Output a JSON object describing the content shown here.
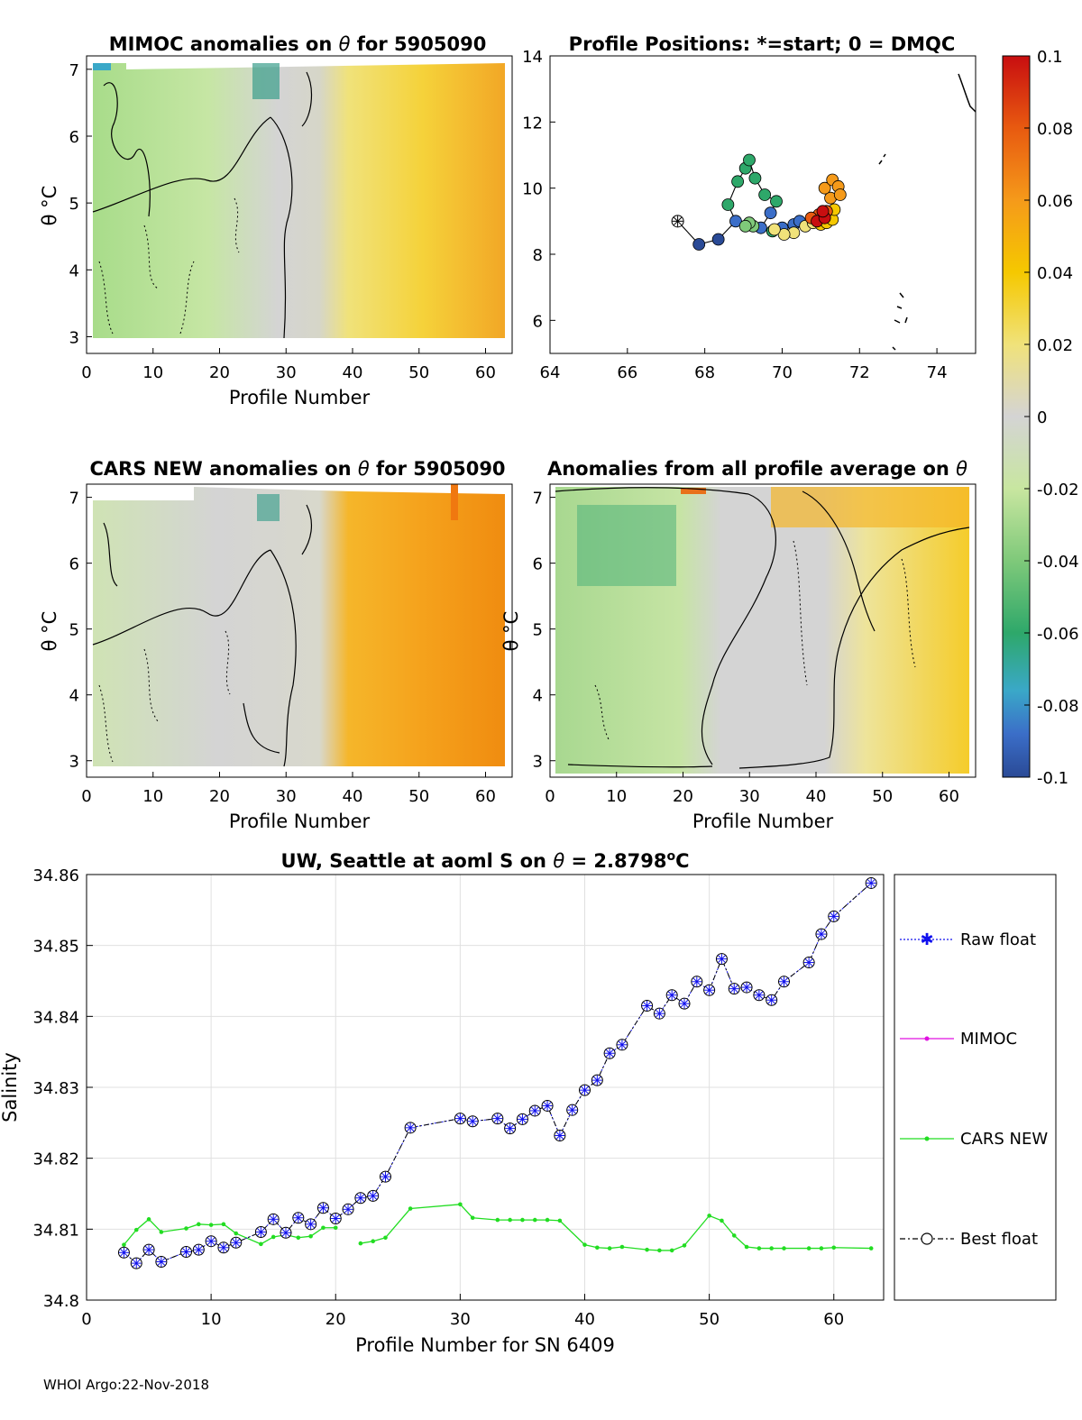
{
  "footer": "WHOI Argo:22-Nov-2018",
  "colorbar": {
    "ticks": [
      "0.1",
      "0.08",
      "0.06",
      "0.04",
      "0.02",
      "0",
      "-0.02",
      "-0.04",
      "-0.06",
      "-0.08",
      "-0.1"
    ],
    "colors": [
      "#2a4a96",
      "#3b6ec8",
      "#3aa8c8",
      "#2ea86a",
      "#7fc97a",
      "#c8e6a0",
      "#d4d4d4",
      "#f0e27a",
      "#f5c800",
      "#f59a1a",
      "#e85a10",
      "#c80e10"
    ]
  },
  "chart_data": [
    {
      "type": "heatmap",
      "title_pre": "MIMOC anomalies on",
      "theta": "θ",
      "title_post": " for 5905090",
      "xlabel": "Profile Number",
      "ylabel": "θ °C",
      "xlim": [
        0,
        64
      ],
      "ylim": [
        2.75,
        7.2
      ],
      "xticks": [
        "0",
        "10",
        "20",
        "30",
        "40",
        "50",
        "60"
      ],
      "yticks": [
        "7",
        "6",
        "5",
        "4",
        "3"
      ],
      "trend": "green/negative early profiles (≈0–30), near-zero grey mid, yellow-orange positive after profile 35"
    },
    {
      "type": "scatter",
      "title": "Profile Positions: *=start; 0 = DMQC",
      "xlim": [
        64,
        75
      ],
      "ylim": [
        5,
        14
      ],
      "xticks": [
        "64",
        "66",
        "68",
        "70",
        "72",
        "74"
      ],
      "yticks": [
        "14",
        "12",
        "10",
        "8",
        "6"
      ],
      "start_marker": [
        67.3,
        9.0
      ],
      "points": [
        {
          "x": 67.3,
          "y": 9.0,
          "v": -0.1
        },
        {
          "x": 67.85,
          "y": 8.3,
          "v": -0.1
        },
        {
          "x": 68.35,
          "y": 8.45,
          "v": -0.1
        },
        {
          "x": 68.8,
          "y": 9.0,
          "v": -0.09
        },
        {
          "x": 68.6,
          "y": 9.5,
          "v": -0.05
        },
        {
          "x": 68.85,
          "y": 10.2,
          "v": -0.05
        },
        {
          "x": 69.05,
          "y": 10.6,
          "v": -0.05
        },
        {
          "x": 69.15,
          "y": 10.85,
          "v": -0.05
        },
        {
          "x": 69.3,
          "y": 10.3,
          "v": -0.05
        },
        {
          "x": 69.55,
          "y": 9.8,
          "v": -0.05
        },
        {
          "x": 69.85,
          "y": 9.6,
          "v": -0.05
        },
        {
          "x": 69.7,
          "y": 9.25,
          "v": -0.09
        },
        {
          "x": 69.45,
          "y": 8.8,
          "v": -0.09
        },
        {
          "x": 69.25,
          "y": 8.85,
          "v": -0.02
        },
        {
          "x": 69.15,
          "y": 8.95,
          "v": -0.02
        },
        {
          "x": 69.05,
          "y": 8.85,
          "v": -0.02
        },
        {
          "x": 69.75,
          "y": 8.7,
          "v": -0.05
        },
        {
          "x": 70.0,
          "y": 8.8,
          "v": -0.09
        },
        {
          "x": 70.3,
          "y": 8.9,
          "v": -0.09
        },
        {
          "x": 70.45,
          "y": 9.0,
          "v": -0.09
        },
        {
          "x": 70.3,
          "y": 8.65,
          "v": 0.02
        },
        {
          "x": 70.05,
          "y": 8.6,
          "v": 0.02
        },
        {
          "x": 69.8,
          "y": 8.75,
          "v": 0.02
        },
        {
          "x": 70.6,
          "y": 8.85,
          "v": 0.02
        },
        {
          "x": 70.8,
          "y": 8.95,
          "v": 0.02
        },
        {
          "x": 71.0,
          "y": 8.9,
          "v": 0.04
        },
        {
          "x": 71.15,
          "y": 8.95,
          "v": 0.04
        },
        {
          "x": 71.3,
          "y": 9.05,
          "v": 0.04
        },
        {
          "x": 71.35,
          "y": 9.35,
          "v": 0.04
        },
        {
          "x": 71.25,
          "y": 9.7,
          "v": 0.06
        },
        {
          "x": 71.1,
          "y": 10.0,
          "v": 0.06
        },
        {
          "x": 71.3,
          "y": 10.25,
          "v": 0.06
        },
        {
          "x": 71.45,
          "y": 10.05,
          "v": 0.06
        },
        {
          "x": 71.5,
          "y": 9.8,
          "v": 0.06
        },
        {
          "x": 71.15,
          "y": 9.3,
          "v": 0.08
        },
        {
          "x": 70.95,
          "y": 9.2,
          "v": 0.08
        },
        {
          "x": 70.75,
          "y": 9.1,
          "v": 0.08
        },
        {
          "x": 70.9,
          "y": 9.0,
          "v": 0.1
        },
        {
          "x": 71.1,
          "y": 9.1,
          "v": 0.1
        },
        {
          "x": 71.05,
          "y": 9.3,
          "v": 0.1
        }
      ]
    },
    {
      "type": "heatmap",
      "title_pre": "CARS NEW anomalies on",
      "theta": "θ",
      "title_post": "for 5905090",
      "xlabel": "Profile Number",
      "ylabel": "θ °C",
      "xlim": [
        0,
        64
      ],
      "ylim": [
        2.75,
        7.2
      ],
      "xticks": [
        "0",
        "10",
        "20",
        "30",
        "40",
        "50",
        "60"
      ],
      "yticks": [
        "7",
        "6",
        "5",
        "4",
        "3"
      ],
      "trend": "grey/green early profiles, strong orange positive anomalies after profile 38"
    },
    {
      "type": "heatmap",
      "title_pre": "Anomalies from all profile average on",
      "theta": "θ",
      "title_post": "",
      "xlabel": "Profile Number",
      "ylabel": "θ °C",
      "xlim": [
        0,
        64
      ],
      "ylim": [
        2.75,
        7.2
      ],
      "xticks": [
        "0",
        "10",
        "20",
        "30",
        "40",
        "50",
        "60"
      ],
      "yticks": [
        "7",
        "6",
        "5",
        "4",
        "3"
      ],
      "trend": "green negative profiles 1–25, grey mid, yellow positive after profile 45"
    },
    {
      "type": "line",
      "title_pre": "UW, Seattle at aoml S on",
      "theta": "θ",
      "title_mid": " = 2.8798",
      "title_unit": "o",
      "title_end": "C",
      "xlabel": "Profile Number for SN 6409",
      "ylabel": "Salinity",
      "xlim": [
        0,
        64
      ],
      "ylim": [
        34.8,
        34.86
      ],
      "xticks": [
        "0",
        "10",
        "20",
        "30",
        "40",
        "50",
        "60"
      ],
      "yticks": [
        "34.86",
        "34.85",
        "34.84",
        "34.83",
        "34.82",
        "34.81",
        "34.8"
      ],
      "legend": [
        "Raw float",
        "MIMOC",
        "CARS NEW",
        "Best float"
      ],
      "series": [
        {
          "name": "Raw float / Best float",
          "x": [
            3,
            4,
            5,
            6,
            8,
            9,
            10,
            11,
            12,
            14,
            15,
            16,
            17,
            18,
            19,
            20,
            21,
            22,
            23,
            24,
            26,
            30,
            31,
            33,
            34,
            35,
            36,
            37,
            38,
            39,
            40,
            41,
            42,
            43,
            45,
            46,
            47,
            48,
            49,
            50,
            51,
            52,
            53,
            54,
            55,
            56,
            58,
            59,
            60,
            63
          ],
          "y": [
            34.8067,
            34.8052,
            34.8071,
            34.8054,
            34.8068,
            34.8071,
            34.8083,
            34.8074,
            34.8081,
            34.8096,
            34.8114,
            34.8095,
            34.8116,
            34.8107,
            34.813,
            34.8115,
            34.8128,
            34.8144,
            34.8147,
            34.8174,
            34.8243,
            34.8256,
            34.8252,
            34.8256,
            34.8242,
            34.8255,
            34.8267,
            34.8274,
            34.8232,
            34.8268,
            34.8296,
            34.831,
            34.8348,
            34.836,
            34.8415,
            34.8404,
            34.843,
            34.8418,
            34.8449,
            34.8437,
            34.8481,
            34.8439,
            34.8441,
            34.843,
            34.8423,
            34.8449,
            34.8476,
            34.8516,
            34.8541,
            34.8588
          ]
        },
        {
          "name": "CARS NEW",
          "x": [
            3,
            4,
            5,
            6,
            8,
            9,
            10,
            11,
            12,
            14,
            15,
            16,
            17,
            18,
            19,
            20
          ],
          "y": [
            34.8078,
            34.8099,
            34.8114,
            34.8096,
            34.8101,
            34.8107,
            34.8106,
            34.8107,
            34.8094,
            34.8079,
            34.8089,
            34.8092,
            34.8088,
            34.809,
            34.8102,
            34.8102
          ]
        },
        {
          "name": "CARS NEW",
          "x": [
            22,
            23,
            24,
            26,
            30,
            31,
            33,
            34,
            35,
            36,
            37,
            38,
            40,
            41,
            42,
            43,
            45,
            46,
            47,
            48,
            50,
            51,
            52,
            53,
            54,
            55,
            56,
            58,
            59,
            60,
            63
          ],
          "y": [
            34.808,
            34.8083,
            34.8088,
            34.8129,
            34.8135,
            34.8116,
            34.8113,
            34.8113,
            34.8113,
            34.8113,
            34.8113,
            34.8112,
            34.8078,
            34.8074,
            34.8073,
            34.8075,
            34.8071,
            34.807,
            34.807,
            34.8077,
            34.8119,
            34.8112,
            34.8091,
            34.8075,
            34.8073,
            34.8073,
            34.8073,
            34.8073,
            34.8073,
            34.8074,
            34.8073
          ]
        }
      ]
    }
  ]
}
